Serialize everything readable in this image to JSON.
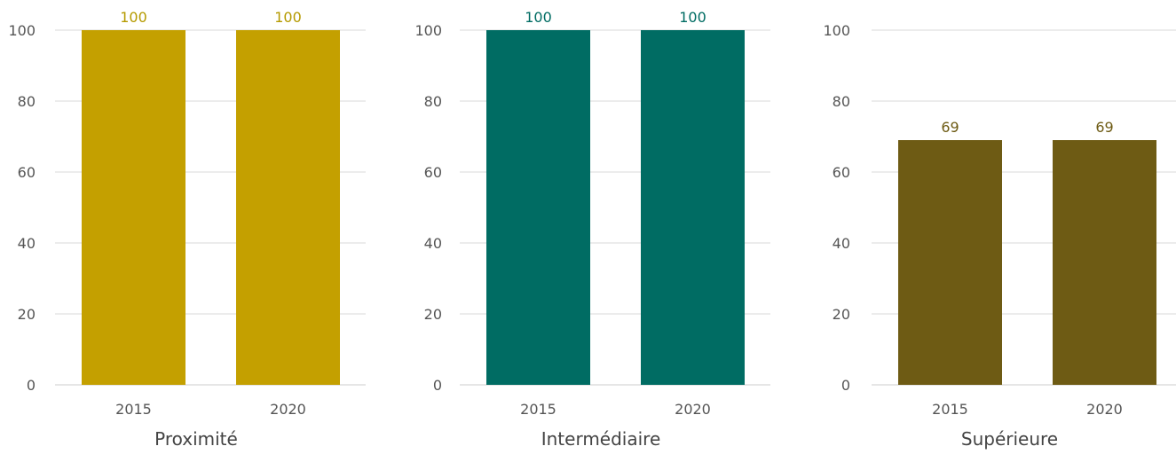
{
  "chart_data": [
    {
      "type": "bar",
      "xlabel": "Proximité",
      "categories": [
        "2015",
        "2020"
      ],
      "values": [
        100,
        100
      ],
      "value_labels": [
        "100",
        "100"
      ],
      "ylim": [
        0,
        100
      ],
      "yticks": [
        "0",
        "20",
        "40",
        "60",
        "80",
        "100"
      ],
      "color": "#C4A000",
      "label_color": "#B59A00",
      "grid": true
    },
    {
      "type": "bar",
      "xlabel": "Intermédiaire",
      "categories": [
        "2015",
        "2020"
      ],
      "values": [
        100,
        100
      ],
      "value_labels": [
        "100",
        "100"
      ],
      "ylim": [
        0,
        100
      ],
      "yticks": [
        "0",
        "20",
        "40",
        "60",
        "80",
        "100"
      ],
      "color": "#006C63",
      "label_color": "#006C63",
      "grid": true
    },
    {
      "type": "bar",
      "xlabel": "Supérieure",
      "categories": [
        "2015",
        "2020"
      ],
      "values": [
        69,
        69
      ],
      "value_labels": [
        "69",
        "69"
      ],
      "ylim": [
        0,
        100
      ],
      "yticks": [
        "0",
        "20",
        "40",
        "60",
        "80",
        "100"
      ],
      "color": "#6E5B14",
      "label_color": "#6E5B14",
      "grid": true
    }
  ]
}
